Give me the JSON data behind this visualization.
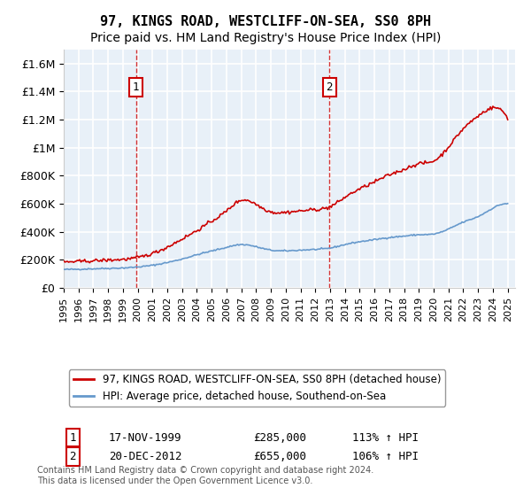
{
  "title": "97, KINGS ROAD, WESTCLIFF-ON-SEA, SS0 8PH",
  "subtitle": "Price paid vs. HM Land Registry's House Price Index (HPI)",
  "legend_line1": "97, KINGS ROAD, WESTCLIFF-ON-SEA, SS0 8PH (detached house)",
  "legend_line2": "HPI: Average price, detached house, Southend-on-Sea",
  "annotation1": {
    "label": "1",
    "date": "17-NOV-1999",
    "price": 285000,
    "hpi_pct": "113%",
    "x_year": 1999.88
  },
  "annotation2": {
    "label": "2",
    "date": "20-DEC-2012",
    "price": 655000,
    "hpi_pct": "106%",
    "x_year": 2012.96
  },
  "footer": "Contains HM Land Registry data © Crown copyright and database right 2024.\nThis data is licensed under the Open Government Licence v3.0.",
  "ylim": [
    0,
    1700000
  ],
  "xlim_start": 1995,
  "xlim_end": 2025.5,
  "yticks": [
    0,
    200000,
    400000,
    600000,
    800000,
    1000000,
    1200000,
    1400000,
    1600000
  ],
  "ytick_labels": [
    "£0",
    "£200K",
    "£400K",
    "£600K",
    "£800K",
    "£1M",
    "£1.2M",
    "£1.4M",
    "£1.6M"
  ],
  "xticks": [
    1995,
    1996,
    1997,
    1998,
    1999,
    2000,
    2001,
    2002,
    2003,
    2004,
    2005,
    2006,
    2007,
    2008,
    2009,
    2010,
    2011,
    2012,
    2013,
    2014,
    2015,
    2016,
    2017,
    2018,
    2019,
    2020,
    2021,
    2022,
    2023,
    2024,
    2025
  ],
  "bg_color": "#e8f0f8",
  "grid_color": "#ffffff",
  "red_color": "#cc0000",
  "blue_color": "#6699cc",
  "title_fontsize": 11,
  "subtitle_fontsize": 10,
  "hpi_annual_years": [
    1995,
    1996,
    1997,
    1998,
    1999,
    2000,
    2001,
    2002,
    2003,
    2004,
    2005,
    2006,
    2007,
    2008,
    2009,
    2010,
    2011,
    2012,
    2013,
    2014,
    2015,
    2016,
    2017,
    2018,
    2019,
    2020,
    2021,
    2022,
    2023,
    2024,
    2025
  ],
  "hpi_annual_values": [
    130000,
    132000,
    135000,
    138000,
    141000,
    148000,
    160000,
    180000,
    205000,
    235000,
    262000,
    288000,
    308000,
    292000,
    268000,
    263000,
    268000,
    273000,
    283000,
    308000,
    328000,
    343000,
    358000,
    368000,
    378000,
    383000,
    418000,
    468000,
    508000,
    568000,
    600000
  ],
  "red_annual_years": [
    1995,
    1996,
    1997,
    1998,
    1999,
    2000,
    2001,
    2002,
    2003,
    2004,
    2005,
    2006,
    2007,
    2008,
    2009,
    2010,
    2011,
    2012,
    2013,
    2014,
    2015,
    2016,
    2017,
    2018,
    2019,
    2020,
    2021,
    2022,
    2023,
    2024,
    2025
  ],
  "red_annual_values": [
    183000,
    187000,
    192000,
    197000,
    202000,
    215000,
    245000,
    290000,
    348000,
    408000,
    475000,
    548000,
    625000,
    595000,
    542000,
    538000,
    548000,
    558000,
    578000,
    645000,
    705000,
    755000,
    805000,
    845000,
    885000,
    905000,
    1005000,
    1135000,
    1225000,
    1285000,
    1210000
  ]
}
